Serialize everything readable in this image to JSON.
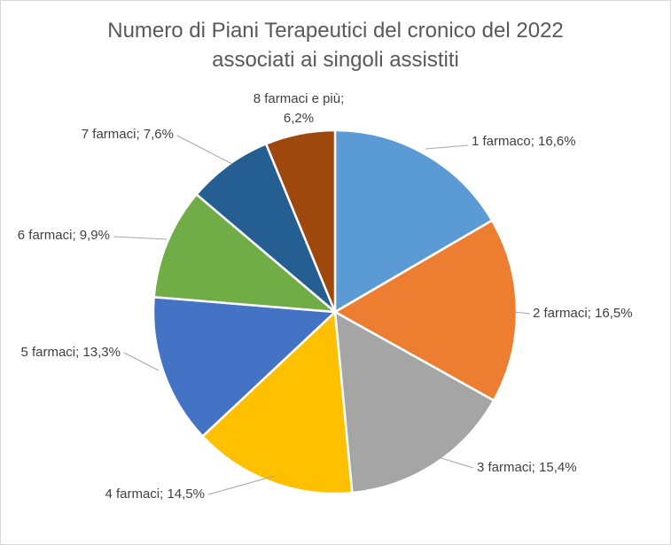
{
  "chart_data": {
    "type": "pie",
    "title": [
      "Numero di Piani Terapeutici del cronico del 2022",
      "associati ai singoli assistiti"
    ],
    "slices": [
      {
        "label": "1 farmaco; 16,6%",
        "value": 16.6,
        "color": "#5B9BD5"
      },
      {
        "label": "2 farmaci; 16,5%",
        "value": 16.5,
        "color": "#ED7D31"
      },
      {
        "label": "3 farmaci; 15,4%",
        "value": 15.4,
        "color": "#A5A5A5"
      },
      {
        "label": "4 farmaci; 14,5%",
        "value": 14.5,
        "color": "#FFC000"
      },
      {
        "label": "5 farmaci; 13,3%",
        "value": 13.3,
        "color": "#4472C4"
      },
      {
        "label": "6 farmaci; 9,9%",
        "value": 9.9,
        "color": "#70AD47"
      },
      {
        "label": "7 farmaci; 7,6%",
        "value": 7.6,
        "color": "#255E91"
      },
      {
        "label": [
          "8 farmaci e più;",
          "6,2%"
        ],
        "value": 6.2,
        "color": "#9E480E"
      }
    ]
  }
}
